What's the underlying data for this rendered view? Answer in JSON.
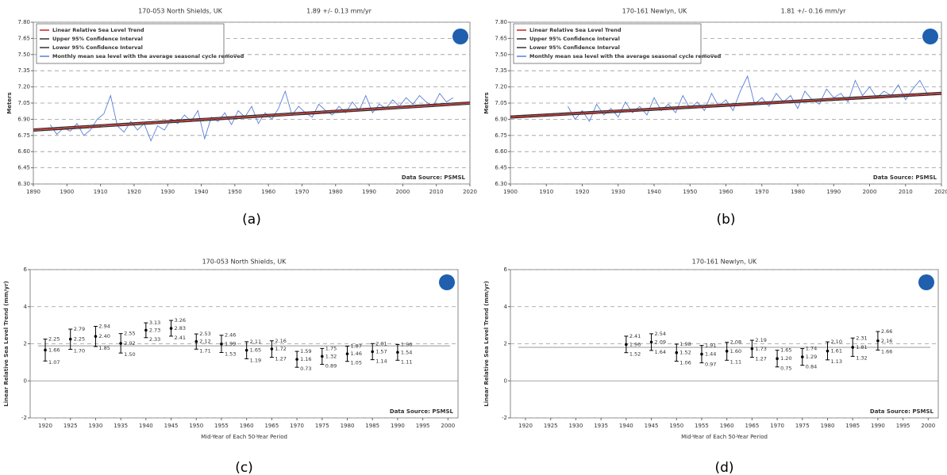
{
  "chart_data": [
    {
      "type": "line",
      "title": "170-053 North Shields, UK",
      "subtitle": "1.89 +/-  0.13 mm/yr",
      "y_label": "Meters",
      "annotation": "Data Source: PSMSL",
      "caption": "(a)",
      "xlim": [
        1890,
        2020
      ],
      "xticks": [
        1890,
        1900,
        1910,
        1920,
        1930,
        1940,
        1950,
        1960,
        1970,
        1980,
        1990,
        2000,
        2010,
        2020
      ],
      "ylim": [
        6.3,
        7.8
      ],
      "yticks": [
        {
          "value": 6.3,
          "label": "6.30"
        },
        6.45,
        {
          "value": 6.6,
          "label": "6.60"
        },
        6.75,
        {
          "value": 6.9,
          "label": "6.90"
        },
        7.05,
        {
          "value": 7.2,
          "label": "7.20"
        },
        7.35,
        {
          "value": 7.5,
          "label": "7.50"
        },
        7.65,
        {
          "value": 7.8,
          "label": "7.80"
        }
      ],
      "grid": true,
      "series": [
        {
          "name": "Linear Relative Sea Level Trend",
          "color": "#cc2222",
          "x": [
            1890,
            2020
          ],
          "values": [
            6.8,
            7.05
          ]
        },
        {
          "name": "Upper 95% Confidence Interval",
          "color": "#333333",
          "x": [
            1890,
            2020
          ],
          "values": [
            6.81,
            7.06
          ]
        },
        {
          "name": "Lower 95% Confidence Interval",
          "color": "#333333",
          "x": [
            1890,
            2020
          ],
          "values": [
            6.79,
            7.04
          ]
        },
        {
          "name": "Monthly mean sea level with the average seasonal cycle removed",
          "color": "#5b7fd9",
          "x": [
            1895,
            1897,
            1899,
            1901,
            1903,
            1905,
            1907,
            1909,
            1911,
            1913,
            1915,
            1917,
            1919,
            1921,
            1923,
            1925,
            1927,
            1929,
            1931,
            1933,
            1935,
            1937,
            1939,
            1941,
            1943,
            1945,
            1947,
            1949,
            1951,
            1953,
            1955,
            1957,
            1959,
            1961,
            1963,
            1965,
            1967,
            1969,
            1971,
            1973,
            1975,
            1977,
            1979,
            1981,
            1983,
            1985,
            1987,
            1989,
            1991,
            1993,
            1995,
            1997,
            1999,
            2001,
            2003,
            2005,
            2007,
            2009,
            2011,
            2013,
            2015
          ],
          "values": [
            6.85,
            6.76,
            6.82,
            6.79,
            6.86,
            6.75,
            6.8,
            6.9,
            6.95,
            7.12,
            6.84,
            6.78,
            6.88,
            6.8,
            6.86,
            6.7,
            6.84,
            6.8,
            6.9,
            6.86,
            6.94,
            6.88,
            6.98,
            6.72,
            6.92,
            6.88,
            6.96,
            6.85,
            6.98,
            6.92,
            7.02,
            6.86,
            6.96,
            6.9,
            7.0,
            7.16,
            6.94,
            7.02,
            6.96,
            6.92,
            7.04,
            6.98,
            6.94,
            7.02,
            6.96,
            7.06,
            6.98,
            7.12,
            6.96,
            7.04,
            7.0,
            7.08,
            7.02,
            7.1,
            7.04,
            7.12,
            7.06,
            7.02,
            7.14,
            7.06,
            7.1
          ]
        }
      ]
    },
    {
      "type": "line",
      "title": "170-161 Newlyn, UK",
      "subtitle": "1.81 +/-  0.16 mm/yr",
      "y_label": "Meters",
      "annotation": "Data Source: PSMSL",
      "caption": "(b)",
      "xlim": [
        1900,
        2020
      ],
      "xticks": [
        1900,
        1910,
        1920,
        1930,
        1940,
        1950,
        1960,
        1970,
        1980,
        1990,
        2000,
        2010,
        2020
      ],
      "ylim": [
        6.3,
        7.8
      ],
      "yticks": [
        {
          "value": 6.3,
          "label": "6.30"
        },
        6.45,
        {
          "value": 6.6,
          "label": "6.60"
        },
        6.75,
        {
          "value": 6.9,
          "label": "6.90"
        },
        7.05,
        {
          "value": 7.2,
          "label": "7.20"
        },
        7.35,
        {
          "value": 7.5,
          "label": "7.50"
        },
        7.65,
        {
          "value": 7.8,
          "label": "7.80"
        }
      ],
      "grid": true,
      "series": [
        {
          "name": "Linear Relative Sea Level Trend",
          "color": "#cc2222",
          "x": [
            1900,
            2020
          ],
          "values": [
            6.92,
            7.14
          ]
        },
        {
          "name": "Upper 95% Confidence Interval",
          "color": "#333333",
          "x": [
            1900,
            2020
          ],
          "values": [
            6.93,
            7.15
          ]
        },
        {
          "name": "Lower 95% Confidence Interval",
          "color": "#333333",
          "x": [
            1900,
            2020
          ],
          "values": [
            6.91,
            7.13
          ]
        },
        {
          "name": "Monthly mean sea level with the average seasonal cycle removed",
          "color": "#5b7fd9",
          "x": [
            1916,
            1918,
            1920,
            1922,
            1924,
            1926,
            1928,
            1930,
            1932,
            1934,
            1936,
            1938,
            1940,
            1942,
            1944,
            1946,
            1948,
            1950,
            1952,
            1954,
            1956,
            1958,
            1960,
            1962,
            1964,
            1966,
            1968,
            1970,
            1972,
            1974,
            1976,
            1978,
            1980,
            1982,
            1984,
            1986,
            1988,
            1990,
            1992,
            1994,
            1996,
            1998,
            2000,
            2002,
            2004,
            2006,
            2008,
            2010,
            2012,
            2014,
            2016
          ],
          "values": [
            7.02,
            6.9,
            6.98,
            6.88,
            7.04,
            6.94,
            7.0,
            6.92,
            7.06,
            6.96,
            7.02,
            6.94,
            7.1,
            6.98,
            7.04,
            6.96,
            7.12,
            7.0,
            7.06,
            6.98,
            7.14,
            7.02,
            7.08,
            6.98,
            7.16,
            7.3,
            7.04,
            7.1,
            7.02,
            7.14,
            7.06,
            7.12,
            7.0,
            7.16,
            7.08,
            7.04,
            7.18,
            7.1,
            7.14,
            7.06,
            7.26,
            7.12,
            7.2,
            7.1,
            7.16,
            7.12,
            7.22,
            7.08,
            7.18,
            7.26,
            7.14
          ]
        }
      ]
    },
    {
      "type": "errorbar",
      "title": "170-053 North Shields, UK",
      "y_label": "Linear Relative Sea Level Trend (mm/yr)",
      "x_label": "Mid-Year of Each 50-Year Period",
      "annotation": "Data Source: PSMSL",
      "caption": "(c)",
      "xlim": [
        1917,
        2002
      ],
      "xticks": [
        1920,
        1925,
        1930,
        1935,
        1940,
        1945,
        1950,
        1955,
        1960,
        1965,
        1970,
        1975,
        1980,
        1985,
        1990,
        1995,
        2000
      ],
      "ylim": [
        -2,
        6
      ],
      "yticks": [
        -2,
        0,
        2,
        4,
        6
      ],
      "grid": true,
      "trend_line": 1.89,
      "x": [
        1920,
        1925,
        1930,
        1935,
        1940,
        1945,
        1950,
        1955,
        1960,
        1965,
        1970,
        1975,
        1980,
        1985,
        1990
      ],
      "series": [
        {
          "color": "#000000",
          "values": [
            1.66,
            2.25,
            2.4,
            2.02,
            2.73,
            2.83,
            2.12,
            1.99,
            1.65,
            1.72,
            1.16,
            1.32,
            1.46,
            1.57,
            1.54
          ],
          "value_labels": [
            "1.66",
            "2.25",
            "2.40",
            "2.02",
            "2.73",
            "2.83",
            "2.12",
            "1.99",
            "1.65",
            "1.72",
            "1.16",
            "1.32",
            "1.46",
            "1.57",
            "1.54"
          ],
          "upper": [
            2.25,
            2.79,
            2.94,
            2.55,
            3.13,
            3.26,
            2.53,
            2.46,
            2.11,
            2.16,
            1.59,
            1.75,
            1.87,
            2.01,
            1.96
          ],
          "upper_labels": [
            "2.25",
            "2.79",
            "2.94",
            "2.55",
            "3.13",
            "3.26",
            "2.53",
            "2.46",
            "2.11",
            "2.16",
            "1.59",
            "1.75",
            "1.87",
            "2.01",
            "1.96"
          ],
          "lower": [
            1.07,
            1.7,
            1.85,
            1.5,
            2.33,
            2.41,
            1.71,
            1.53,
            1.19,
            1.27,
            0.73,
            0.89,
            1.05,
            1.14,
            1.11
          ],
          "lower_labels": [
            "1.07",
            "1.70",
            "1.85",
            "1.50",
            "2.33",
            "2.41",
            "1.71",
            "1.53",
            "1.19",
            "1.27",
            "0.73",
            "0.89",
            "1.05",
            "1.14",
            "1.11"
          ]
        }
      ]
    },
    {
      "type": "errorbar",
      "title": "170-161 Newlyn, UK",
      "y_label": "Linear Relative Sea Level Trend (mm/yr)",
      "x_label": "Mid-Year of Each 50-Year Period",
      "annotation": "Data Source: PSMSL",
      "caption": "(d)",
      "xlim": [
        1917,
        2002
      ],
      "xticks": [
        1920,
        1925,
        1930,
        1935,
        1940,
        1945,
        1950,
        1955,
        1960,
        1965,
        1970,
        1975,
        1980,
        1985,
        1990,
        1995,
        2000
      ],
      "ylim": [
        -2,
        6
      ],
      "yticks": [
        -2,
        0,
        2,
        4,
        6
      ],
      "grid": true,
      "trend_line": 1.81,
      "x": [
        1940,
        1945,
        1950,
        1955,
        1960,
        1965,
        1970,
        1975,
        1980,
        1985,
        1990
      ],
      "series": [
        {
          "color": "#000000",
          "values": [
            1.96,
            2.09,
            1.52,
            1.44,
            1.6,
            1.73,
            1.2,
            1.29,
            1.61,
            1.81,
            2.16
          ],
          "value_labels": [
            "1.96",
            "2.09",
            "1.52",
            "1.44",
            "1.60",
            "1.73",
            "1.20",
            "1.29",
            "1.61",
            "1.81",
            "2.16"
          ],
          "upper": [
            2.41,
            2.54,
            1.98,
            1.91,
            2.08,
            2.19,
            1.65,
            1.74,
            2.1,
            2.31,
            2.66
          ],
          "upper_labels": [
            "2.41",
            "2.54",
            "1.98",
            "1.91",
            "2.08",
            "2.19",
            "1.65",
            "1.74",
            "2.10",
            "2.31",
            "2.66"
          ],
          "lower": [
            1.52,
            1.64,
            1.06,
            0.97,
            1.11,
            1.27,
            0.75,
            0.84,
            1.13,
            1.32,
            1.66
          ],
          "lower_labels": [
            "1.52",
            "1.64",
            "1.06",
            "0.97",
            "1.11",
            "1.27",
            "0.75",
            "0.84",
            "1.13",
            "1.32",
            "1.66"
          ]
        }
      ]
    }
  ]
}
